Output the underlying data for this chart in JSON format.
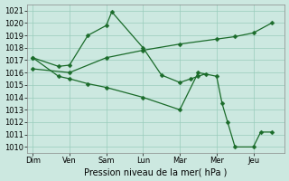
{
  "background_color": "#cce8e0",
  "grid_color": "#99ccbb",
  "line_color": "#1a6b2a",
  "x_labels": [
    "Dim",
    "Ven",
    "Sam",
    "Lun",
    "Mar",
    "Mer",
    "Jeu"
  ],
  "x_ticks": [
    0,
    1,
    2,
    3,
    4,
    5,
    6
  ],
  "xlim": [
    -0.15,
    6.85
  ],
  "ylim": [
    1009.5,
    1021.5
  ],
  "yticks": [
    1010,
    1011,
    1012,
    1013,
    1014,
    1015,
    1016,
    1017,
    1018,
    1019,
    1020,
    1021
  ],
  "xlabel": "Pression niveau de la mer( hPa )",
  "line1_x": [
    0,
    0.7,
    1.0,
    1.5,
    2.0,
    2.15,
    3.0,
    3.5,
    4.0,
    4.3,
    4.5,
    4.7
  ],
  "line1_y": [
    1017.2,
    1016.5,
    1016.6,
    1019.0,
    1019.8,
    1020.9,
    1018.0,
    1015.8,
    1015.2,
    1015.5,
    1015.7,
    1015.9
  ],
  "line2_x": [
    0,
    1,
    2,
    3,
    4,
    5,
    5.5,
    6,
    6.5
  ],
  "line2_y": [
    1016.3,
    1016.0,
    1017.2,
    1017.8,
    1018.3,
    1018.7,
    1018.9,
    1019.2,
    1020.0
  ],
  "line3_x": [
    0,
    0.7,
    1.0,
    1.5,
    2.0,
    3.0,
    4.0,
    4.5,
    5.0,
    5.15,
    5.3,
    5.5,
    6.0,
    6.2,
    6.5
  ],
  "line3_y": [
    1017.2,
    1015.7,
    1015.5,
    1015.1,
    1014.8,
    1014.0,
    1013.0,
    1016.0,
    1015.7,
    1013.5,
    1012.0,
    1010.0,
    1010.0,
    1011.2,
    1011.2
  ],
  "marker_size": 2.5,
  "line_width": 0.9,
  "tick_fontsize": 6.0,
  "xlabel_fontsize": 7.0
}
